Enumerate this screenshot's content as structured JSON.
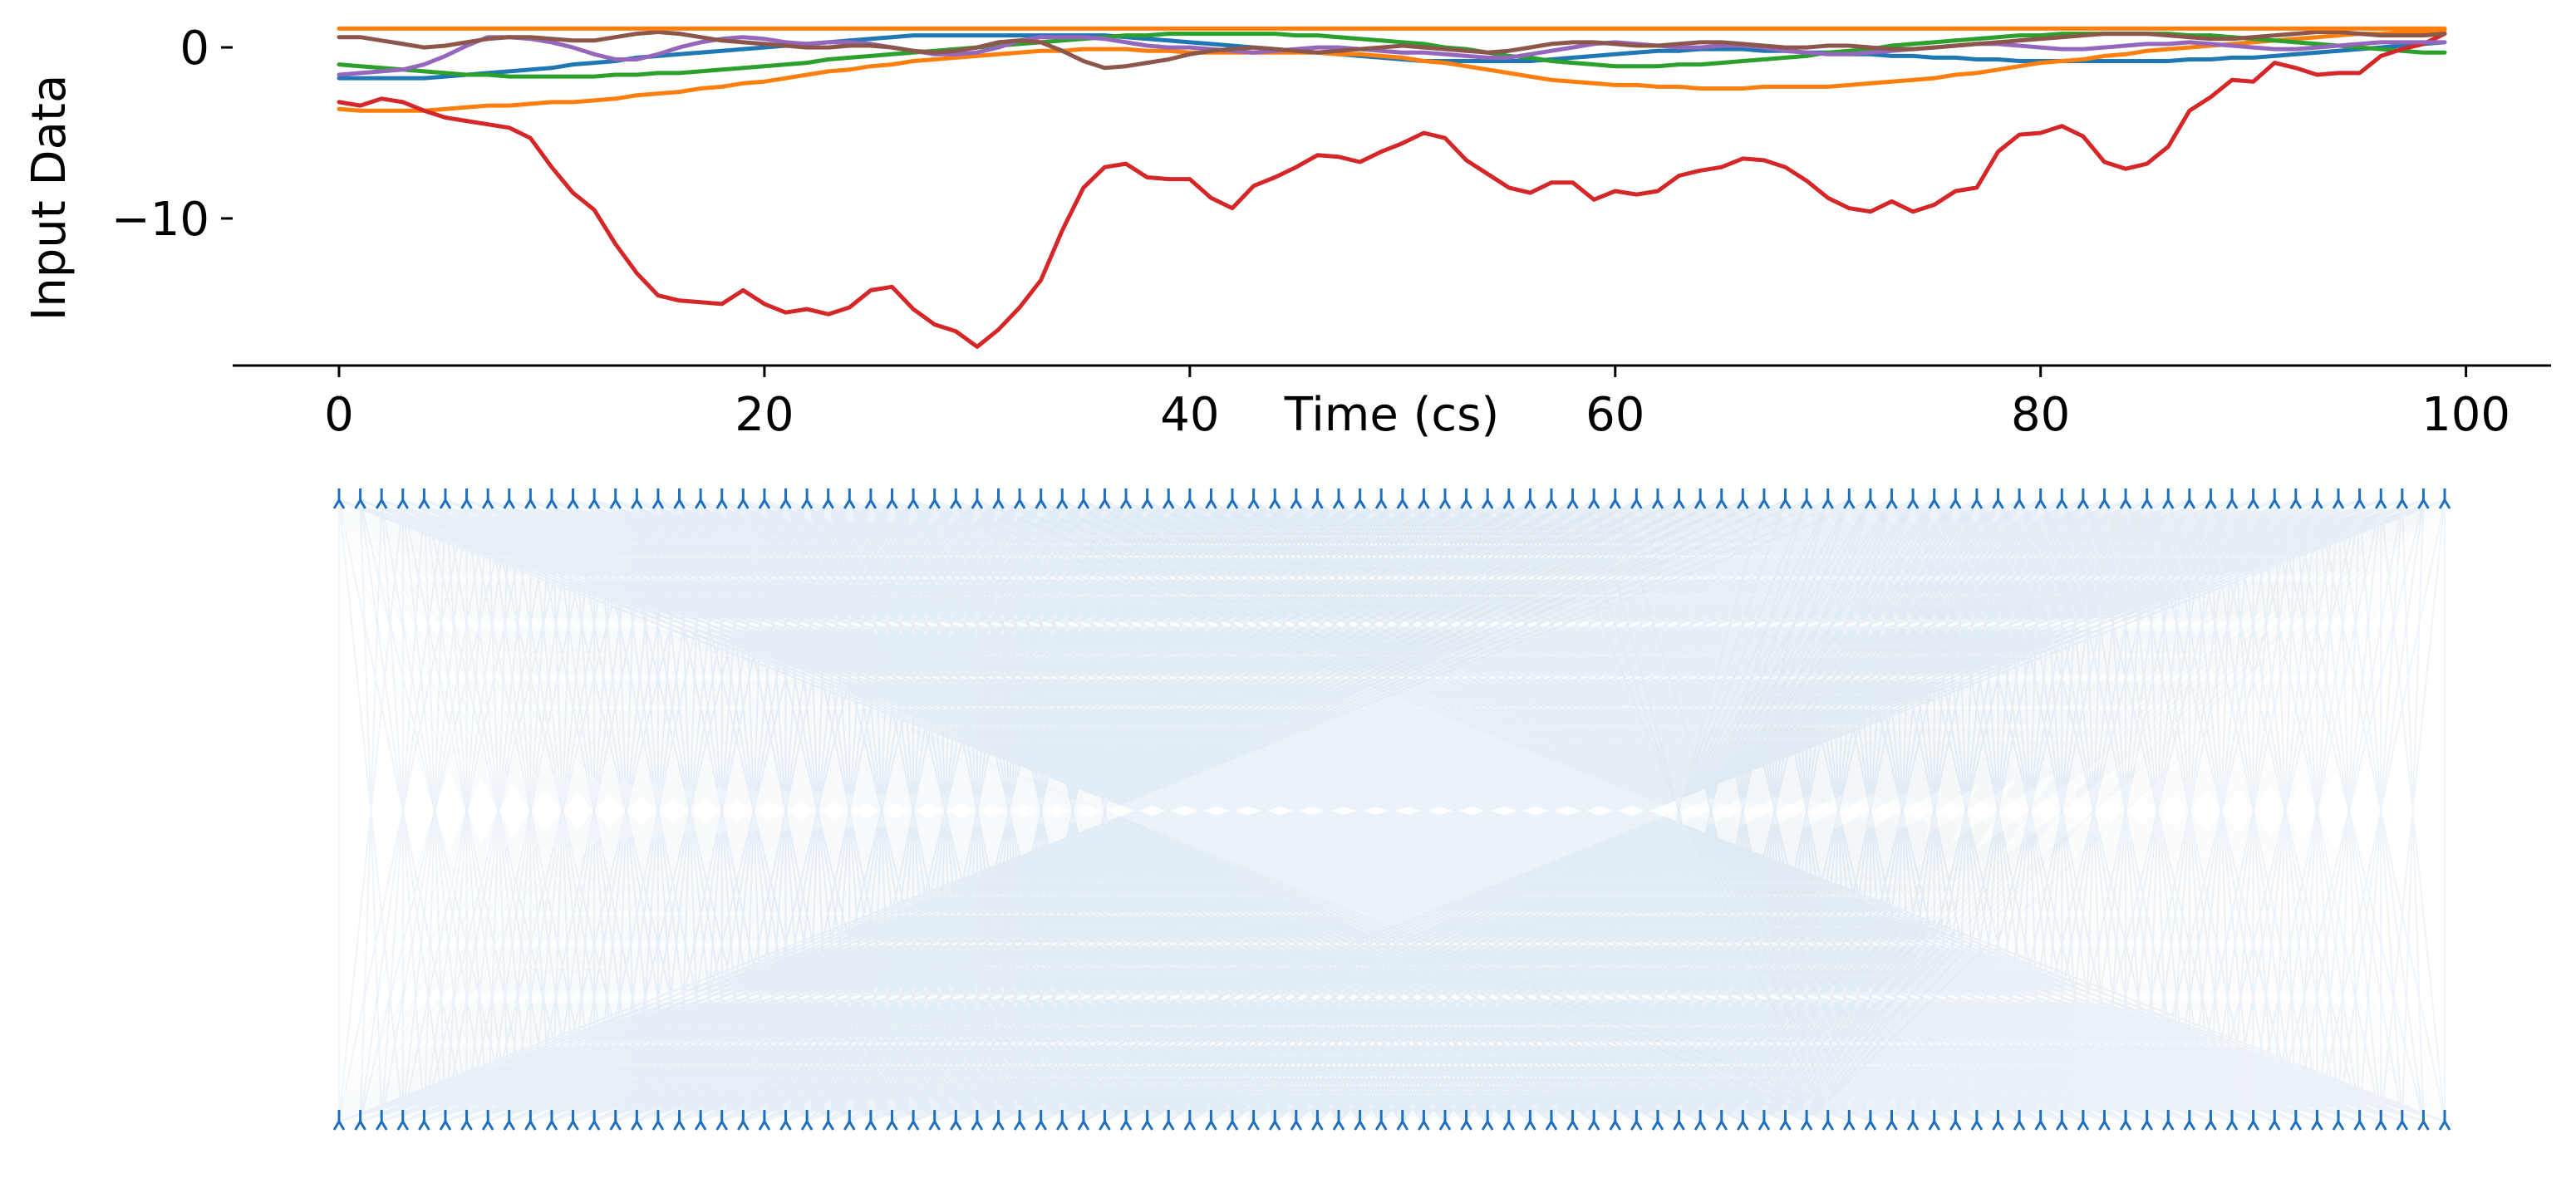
{
  "chart_data": [
    {
      "type": "line",
      "title": "",
      "xlabel": "Time (cs)",
      "ylabel": "Input Data",
      "xlim": [
        -5,
        104
      ],
      "ylim": [
        -18.6,
        1.8
      ],
      "x_ticks": [
        0,
        20,
        40,
        60,
        80,
        100
      ],
      "y_ticks": [
        0,
        -10
      ],
      "grid": false,
      "legend": "none",
      "x_step": 1,
      "series": [
        {
          "color": "#1f77b4",
          "values": [
            -1.8,
            -1.8,
            -1.8,
            -1.8,
            -1.8,
            -1.7,
            -1.6,
            -1.5,
            -1.4,
            -1.3,
            -1.2,
            -1.0,
            -0.9,
            -0.8,
            -0.6,
            -0.5,
            -0.4,
            -0.3,
            -0.2,
            -0.1,
            0.0,
            0.1,
            0.2,
            0.3,
            0.4,
            0.5,
            0.6,
            0.7,
            0.7,
            0.7,
            0.7,
            0.7,
            0.7,
            0.7,
            0.7,
            0.7,
            0.7,
            0.6,
            0.5,
            0.4,
            0.3,
            0.2,
            0.1,
            0.0,
            -0.1,
            -0.2,
            -0.3,
            -0.4,
            -0.5,
            -0.6,
            -0.7,
            -0.8,
            -0.8,
            -0.8,
            -0.8,
            -0.8,
            -0.8,
            -0.7,
            -0.6,
            -0.5,
            -0.4,
            -0.3,
            -0.2,
            -0.2,
            -0.1,
            -0.1,
            -0.1,
            -0.2,
            -0.2,
            -0.3,
            -0.3,
            -0.4,
            -0.4,
            -0.5,
            -0.5,
            -0.6,
            -0.6,
            -0.7,
            -0.7,
            -0.8,
            -0.8,
            -0.8,
            -0.8,
            -0.8,
            -0.8,
            -0.8,
            -0.8,
            -0.7,
            -0.7,
            -0.6,
            -0.6,
            -0.5,
            -0.4,
            -0.3,
            -0.2,
            -0.1,
            0.0,
            0.1,
            0.2,
            0.3
          ]
        },
        {
          "color": "#ff7f0e",
          "values": [
            -3.6,
            -3.7,
            -3.7,
            -3.7,
            -3.7,
            -3.6,
            -3.5,
            -3.4,
            -3.4,
            -3.3,
            -3.2,
            -3.2,
            -3.1,
            -3.0,
            -2.8,
            -2.7,
            -2.6,
            -2.4,
            -2.3,
            -2.1,
            -2.0,
            -1.8,
            -1.6,
            -1.4,
            -1.3,
            -1.1,
            -1.0,
            -0.8,
            -0.7,
            -0.6,
            -0.5,
            -0.4,
            -0.3,
            -0.2,
            -0.2,
            -0.1,
            -0.1,
            -0.1,
            -0.2,
            -0.2,
            -0.3,
            -0.3,
            -0.3,
            -0.3,
            -0.3,
            -0.3,
            -0.3,
            -0.4,
            -0.4,
            -0.5,
            -0.6,
            -0.8,
            -0.9,
            -1.1,
            -1.3,
            -1.5,
            -1.7,
            -1.9,
            -2.0,
            -2.1,
            -2.2,
            -2.2,
            -2.3,
            -2.3,
            -2.4,
            -2.4,
            -2.4,
            -2.3,
            -2.3,
            -2.3,
            -2.3,
            -2.2,
            -2.1,
            -2.0,
            -1.9,
            -1.8,
            -1.6,
            -1.5,
            -1.3,
            -1.1,
            -0.9,
            -0.8,
            -0.7,
            -0.5,
            -0.4,
            -0.2,
            -0.1,
            0.0,
            0.1,
            0.2,
            0.3,
            0.4,
            0.5,
            0.6,
            0.7,
            0.8,
            0.8,
            0.9,
            0.9,
            1.0
          ]
        },
        {
          "color": "#2ca02c",
          "values": [
            -1.0,
            -1.1,
            -1.2,
            -1.3,
            -1.4,
            -1.5,
            -1.6,
            -1.6,
            -1.7,
            -1.7,
            -1.7,
            -1.7,
            -1.7,
            -1.6,
            -1.6,
            -1.5,
            -1.5,
            -1.4,
            -1.3,
            -1.2,
            -1.1,
            -1.0,
            -0.9,
            -0.7,
            -0.6,
            -0.5,
            -0.4,
            -0.3,
            -0.2,
            -0.1,
            0.0,
            0.1,
            0.2,
            0.3,
            0.4,
            0.5,
            0.6,
            0.7,
            0.7,
            0.8,
            0.8,
            0.8,
            0.8,
            0.8,
            0.8,
            0.7,
            0.7,
            0.6,
            0.5,
            0.4,
            0.3,
            0.2,
            0.0,
            -0.1,
            -0.3,
            -0.5,
            -0.6,
            -0.8,
            -0.9,
            -1.0,
            -1.1,
            -1.1,
            -1.1,
            -1.0,
            -1.0,
            -0.9,
            -0.8,
            -0.7,
            -0.6,
            -0.5,
            -0.3,
            -0.2,
            -0.1,
            0.1,
            0.2,
            0.3,
            0.4,
            0.5,
            0.6,
            0.7,
            0.7,
            0.8,
            0.8,
            0.8,
            0.8,
            0.8,
            0.8,
            0.7,
            0.7,
            0.6,
            0.5,
            0.4,
            0.3,
            0.2,
            0.1,
            0.0,
            -0.1,
            -0.2,
            -0.3,
            -0.3
          ]
        },
        {
          "color": "#d62728",
          "values": [
            -3.2,
            -3.4,
            -3.0,
            -3.2,
            -3.7,
            -4.1,
            -4.3,
            -4.5,
            -4.7,
            -5.3,
            -7.0,
            -8.5,
            -9.5,
            -11.5,
            -13.2,
            -14.5,
            -14.8,
            -14.9,
            -15.0,
            -14.2,
            -15.0,
            -15.5,
            -15.3,
            -15.6,
            -15.2,
            -14.2,
            -14.0,
            -15.3,
            -16.2,
            -16.6,
            -17.5,
            -16.5,
            -15.2,
            -13.6,
            -10.7,
            -8.2,
            -7.0,
            -6.8,
            -7.6,
            -7.7,
            -7.7,
            -8.8,
            -9.4,
            -8.1,
            -7.6,
            -7.0,
            -6.3,
            -6.4,
            -6.7,
            -6.1,
            -5.6,
            -5.0,
            -5.3,
            -6.6,
            -7.4,
            -8.2,
            -8.5,
            -7.9,
            -7.9,
            -8.9,
            -8.4,
            -8.6,
            -8.4,
            -7.5,
            -7.2,
            -7.0,
            -6.5,
            -6.6,
            -7.0,
            -7.8,
            -8.8,
            -9.4,
            -9.6,
            -9.0,
            -9.6,
            -9.2,
            -8.4,
            -8.2,
            -6.1,
            -5.1,
            -5.0,
            -4.6,
            -5.2,
            -6.7,
            -7.1,
            -6.8,
            -5.8,
            -3.7,
            -2.9,
            -1.9,
            -2.0,
            -0.9,
            -1.2,
            -1.6,
            -1.5,
            -1.5,
            -0.5,
            -0.1,
            0.2,
            0.8
          ]
        },
        {
          "color": "#9467bd",
          "values": [
            -1.6,
            -1.5,
            -1.4,
            -1.3,
            -1.0,
            -0.5,
            0.1,
            0.6,
            0.6,
            0.5,
            0.3,
            0.0,
            -0.4,
            -0.7,
            -0.7,
            -0.4,
            0.0,
            0.3,
            0.5,
            0.6,
            0.5,
            0.3,
            0.2,
            0.3,
            0.3,
            0.2,
            0.0,
            -0.2,
            -0.4,
            -0.4,
            -0.3,
            0.0,
            0.4,
            0.6,
            0.6,
            0.6,
            0.5,
            0.3,
            0.1,
            0.0,
            0.0,
            -0.1,
            -0.2,
            -0.3,
            -0.2,
            -0.1,
            0.0,
            0.0,
            -0.1,
            -0.2,
            -0.3,
            -0.3,
            -0.4,
            -0.5,
            -0.6,
            -0.6,
            -0.4,
            -0.2,
            0.0,
            0.2,
            0.3,
            0.2,
            0.1,
            0.0,
            0.0,
            0.1,
            0.1,
            0.0,
            -0.2,
            -0.3,
            -0.4,
            -0.4,
            -0.3,
            -0.2,
            -0.1,
            0.0,
            0.1,
            0.2,
            0.2,
            0.1,
            0.0,
            -0.1,
            -0.1,
            0.0,
            0.1,
            0.2,
            0.2,
            0.3,
            0.2,
            0.1,
            0.0,
            -0.1,
            -0.1,
            0.0,
            0.1,
            0.2,
            0.3,
            0.3,
            0.3,
            0.3
          ]
        },
        {
          "color": "#8c564b",
          "values": [
            0.6,
            0.6,
            0.4,
            0.2,
            0.0,
            0.1,
            0.3,
            0.5,
            0.6,
            0.6,
            0.5,
            0.4,
            0.4,
            0.6,
            0.8,
            0.9,
            0.8,
            0.6,
            0.4,
            0.3,
            0.2,
            0.1,
            0.0,
            0.0,
            0.1,
            0.1,
            0.0,
            -0.2,
            -0.3,
            -0.2,
            0.0,
            0.3,
            0.4,
            0.3,
            -0.2,
            -0.8,
            -1.2,
            -1.1,
            -0.9,
            -0.7,
            -0.4,
            -0.2,
            -0.1,
            0.0,
            -0.1,
            -0.2,
            -0.3,
            -0.2,
            -0.1,
            0.0,
            0.1,
            0.0,
            -0.1,
            -0.2,
            -0.3,
            -0.2,
            0.0,
            0.2,
            0.3,
            0.3,
            0.2,
            0.1,
            0.1,
            0.2,
            0.3,
            0.3,
            0.2,
            0.1,
            0.0,
            0.0,
            0.1,
            0.1,
            0.0,
            -0.1,
            -0.1,
            0.0,
            0.1,
            0.2,
            0.3,
            0.4,
            0.5,
            0.6,
            0.7,
            0.8,
            0.8,
            0.8,
            0.7,
            0.6,
            0.5,
            0.5,
            0.6,
            0.7,
            0.8,
            0.9,
            0.9,
            0.8,
            0.7,
            0.7,
            0.7,
            0.8
          ]
        },
        {
          "color": "#ff7f0e",
          "values": [
            1.1,
            1.1,
            1.1,
            1.1,
            1.1,
            1.1,
            1.1,
            1.1,
            1.1,
            1.1,
            1.1,
            1.1,
            1.1,
            1.1,
            1.1,
            1.1,
            1.1,
            1.1,
            1.1,
            1.1,
            1.1,
            1.1,
            1.1,
            1.1,
            1.1,
            1.1,
            1.1,
            1.1,
            1.1,
            1.1,
            1.1,
            1.1,
            1.1,
            1.1,
            1.1,
            1.1,
            1.1,
            1.1,
            1.1,
            1.1,
            1.1,
            1.1,
            1.1,
            1.1,
            1.1,
            1.1,
            1.1,
            1.1,
            1.1,
            1.1,
            1.1,
            1.1,
            1.1,
            1.1,
            1.1,
            1.1,
            1.1,
            1.1,
            1.1,
            1.1,
            1.1,
            1.1,
            1.1,
            1.1,
            1.1,
            1.1,
            1.1,
            1.1,
            1.1,
            1.1,
            1.1,
            1.1,
            1.1,
            1.1,
            1.1,
            1.1,
            1.1,
            1.1,
            1.1,
            1.1,
            1.1,
            1.1,
            1.1,
            1.1,
            1.1,
            1.1,
            1.1,
            1.1,
            1.1,
            1.1,
            1.1,
            1.1,
            1.1,
            1.1,
            1.1,
            1.1,
            1.1,
            1.1,
            1.1,
            1.1
          ]
        }
      ]
    },
    {
      "type": "other",
      "title": "",
      "top_node_count": 100,
      "bottom_node_count": 100,
      "node_color": "#1f6fbf",
      "edge_colors": [
        "#1f6fbf",
        "#7aa6c9",
        "#b0bccc"
      ],
      "grid": false,
      "legend": "none"
    }
  ]
}
